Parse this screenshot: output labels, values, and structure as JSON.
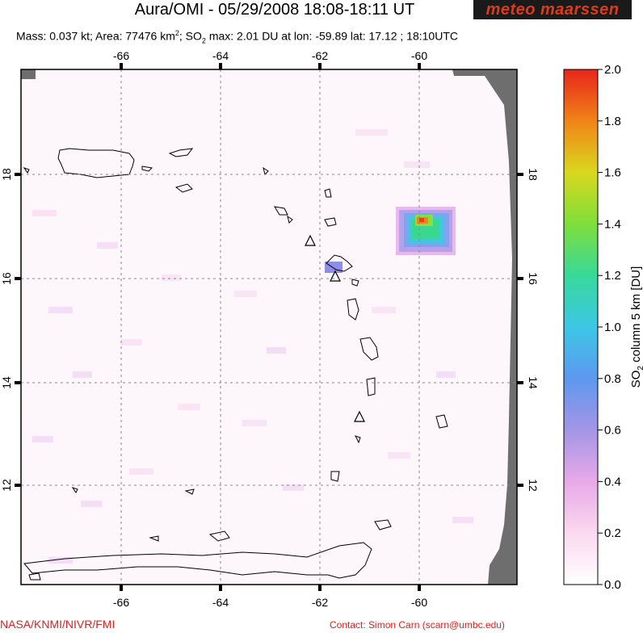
{
  "header": {
    "title": "Aura/OMI - 05/29/2008 18:08-18:11 UT",
    "logo_text": "meteo maarssen",
    "mass_label": "Mass: 0.037 kt; Area: 77476 km",
    "area_sup": "2",
    "so2_label": "; SO",
    "so2_sub": "2",
    "max_text": " max: 2.01 DU at lon: -59.89 lat: 17.12 ; 18:10UTC"
  },
  "map": {
    "lon_ticks": [
      "-66",
      "-64",
      "-62",
      "-60"
    ],
    "lat_ticks": [
      "18",
      "16",
      "14",
      "12"
    ],
    "colors": {
      "background": "#fdf7fb",
      "nodata": "#6e6e6e",
      "coast": "#000000",
      "grid": "#888888"
    }
  },
  "colorbar": {
    "title": "SO",
    "title_sub": "2",
    "title_rest": " column 5 km [DU]",
    "ticks": [
      "2.0",
      "1.8",
      "1.6",
      "1.4",
      "1.2",
      "1.0",
      "0.8",
      "0.6",
      "0.4",
      "0.2",
      "0.0"
    ]
  },
  "footer": {
    "credit": "NASA/KNMI/NIVR/FMI",
    "contact": "Contact: Simon Carn (scarn@umbc.edu)"
  }
}
